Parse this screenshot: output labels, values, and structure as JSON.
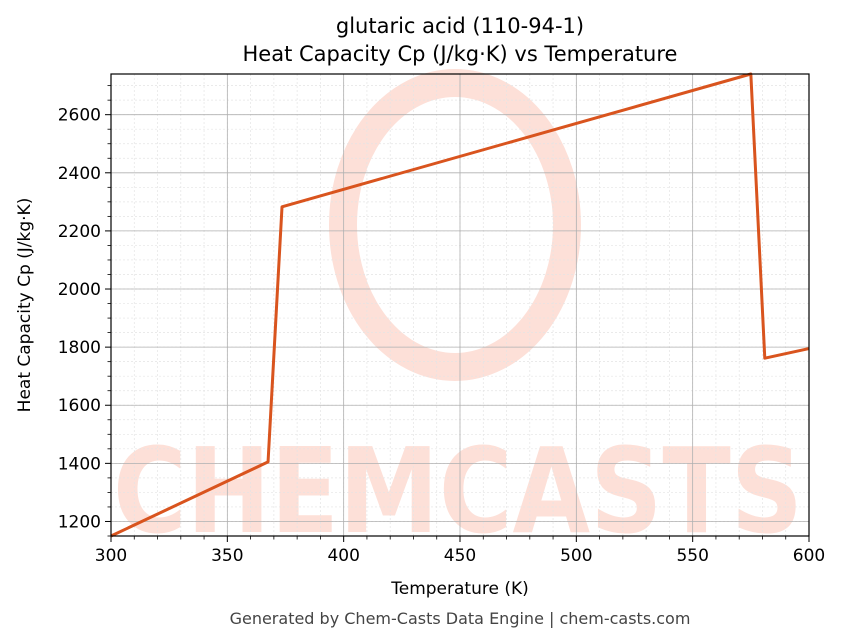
{
  "chart_data": {
    "type": "line",
    "title": "glutaric acid (110-94-1)",
    "subtitle": "Heat Capacity Cp (J/kg·K) vs Temperature",
    "xlabel": "Temperature (K)",
    "ylabel": "Heat Capacity Cp (J/kg·K)",
    "xlim": [
      300,
      600
    ],
    "ylim": [
      1150,
      2740
    ],
    "xticks": [
      300,
      350,
      400,
      450,
      500,
      550,
      600
    ],
    "yticks": [
      1200,
      1400,
      1600,
      1800,
      2000,
      2200,
      2400,
      2600
    ],
    "grid": true,
    "series": [
      {
        "color": "#d9541e",
        "x": [
          300,
          367.5,
          373.5,
          575,
          581,
          600
        ],
        "y": [
          1150,
          1405,
          2283,
          2740,
          1762,
          1795
        ]
      }
    ]
  },
  "watermark": {
    "text": "CHEMCASTS",
    "color": "#fde0d8"
  },
  "footer": "Generated by Chem-Casts Data Engine | chem-casts.com"
}
